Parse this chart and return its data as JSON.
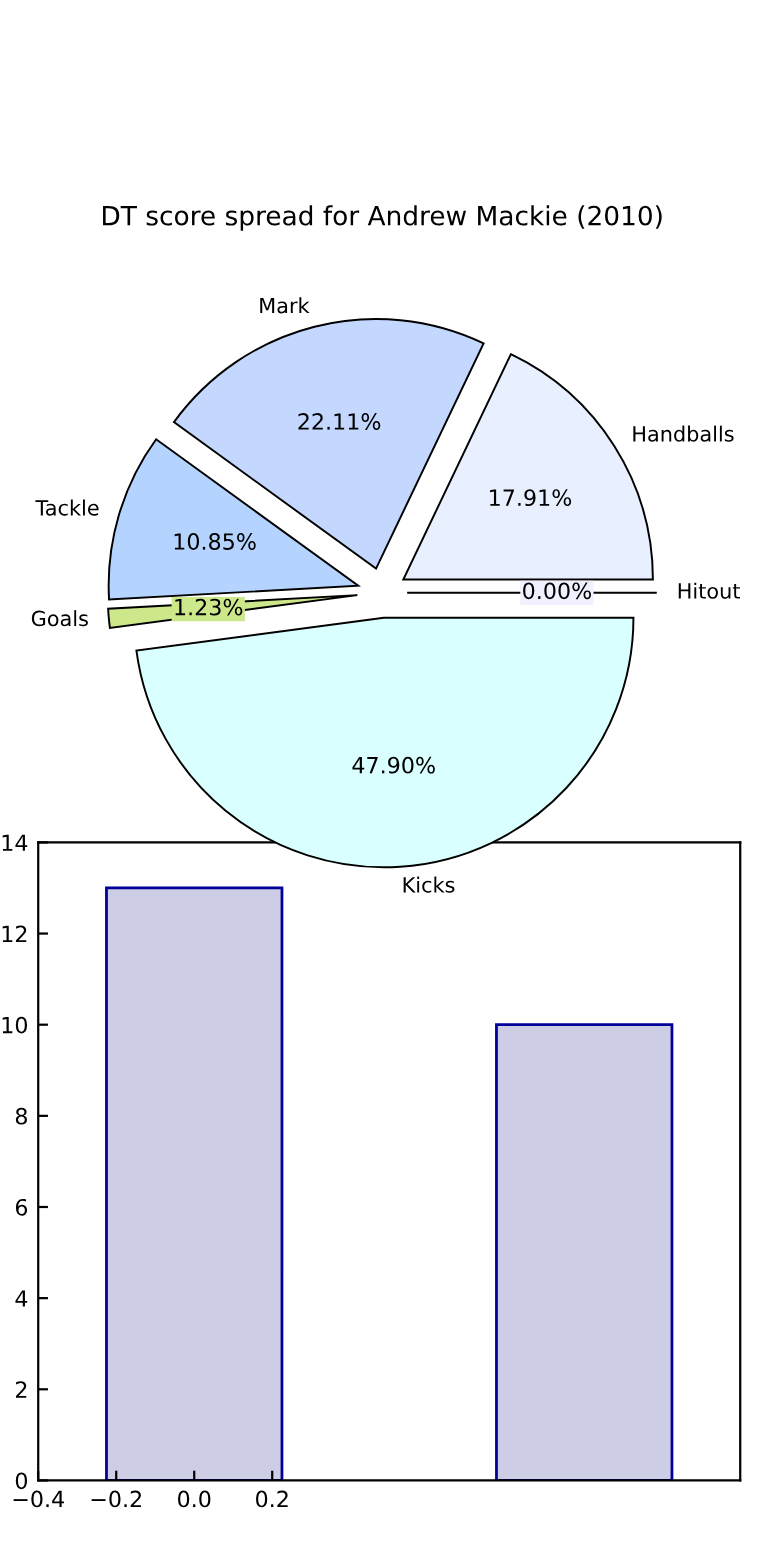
{
  "chart_data": [
    {
      "type": "pie",
      "title": "DT score spread for Andrew Mackie (2010)",
      "categories": [
        "Hitout",
        "Handballs",
        "Mark",
        "Tackle",
        "Goals",
        "Kicks"
      ],
      "values": [
        0.0,
        17.91,
        22.11,
        10.85,
        1.23,
        47.9
      ],
      "value_labels": [
        "0.00%",
        "17.91%",
        "22.11%",
        "10.85%",
        "1.23%",
        "47.90%"
      ],
      "colors": [
        "#f0f0ff",
        "#e8f0ff",
        "#c4d8ff",
        "#b4d4ff",
        "#cce88a",
        "#d9ffff"
      ]
    },
    {
      "type": "bar",
      "x": [
        0,
        1
      ],
      "values": [
        13,
        10
      ],
      "color": "#cdcde6",
      "xlim": [
        -0.4,
        1.4
      ],
      "xticks": [
        {
          "value": -0.4,
          "label": "−0.4"
        },
        {
          "value": -0.2,
          "label": "−0.2"
        },
        {
          "value": 0.0,
          "label": "0.0"
        },
        {
          "value": 0.2,
          "label": "0.2"
        }
      ],
      "ylim": [
        0,
        14
      ],
      "yticks": [
        0,
        2,
        4,
        6,
        8,
        10,
        12,
        14
      ]
    }
  ]
}
